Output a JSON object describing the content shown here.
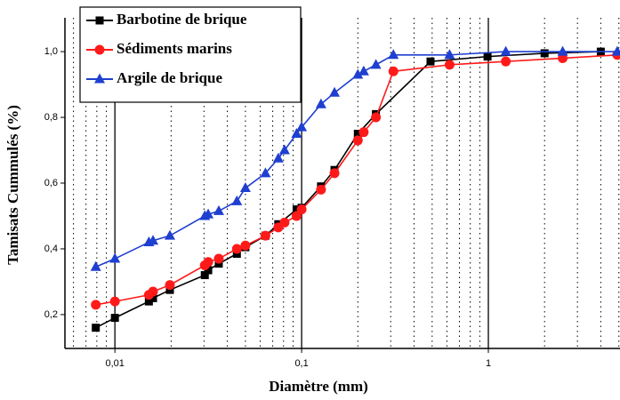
{
  "chart_data": {
    "type": "line",
    "x_label": "Diamètre (mm)",
    "y_label": "Tamisats Cummulés (%)",
    "xscale": "log",
    "xlim": [
      0.0054,
      5.07
    ],
    "ylim": [
      0.097,
      1.103
    ],
    "xticks": [
      {
        "value": 0.01,
        "label": "0,01"
      },
      {
        "value": 0.1,
        "label": "0,1"
      },
      1
    ],
    "yticks": [
      {
        "value": 0.2,
        "label": "0,2"
      },
      {
        "value": 0.4,
        "label": "0,4"
      },
      {
        "value": 0.6,
        "label": "0,6"
      },
      {
        "value": 0.8,
        "label": "0,8"
      },
      {
        "value": 1.0,
        "label": "1,0"
      }
    ],
    "grid": true,
    "legend": "upper left",
    "series": [
      {
        "name": "Barbotine de brique",
        "color": "#000000",
        "marker": "square",
        "x": [
          0.0079,
          0.01,
          0.0152,
          0.016,
          0.0197,
          0.0303,
          0.0316,
          0.036,
          0.045,
          0.05,
          0.064,
          0.075,
          0.094,
          0.1,
          0.127,
          0.15,
          0.2,
          0.25,
          0.49,
          0.99,
          2.0,
          4.0
        ],
        "values": [
          0.16,
          0.19,
          0.24,
          0.25,
          0.275,
          0.32,
          0.335,
          0.355,
          0.385,
          0.405,
          0.44,
          0.475,
          0.52,
          0.525,
          0.59,
          0.64,
          0.75,
          0.81,
          0.97,
          0.985,
          0.995,
          1.0
        ]
      },
      {
        "name": "Sédiments marins",
        "color": "#ff1a1a",
        "marker": "circle",
        "x": [
          0.0079,
          0.01,
          0.0152,
          0.016,
          0.0197,
          0.0303,
          0.0316,
          0.036,
          0.045,
          0.05,
          0.064,
          0.075,
          0.081,
          0.094,
          0.1,
          0.127,
          0.15,
          0.2,
          0.215,
          0.25,
          0.31,
          0.62,
          1.24,
          2.5,
          4.9
        ],
        "values": [
          0.23,
          0.24,
          0.26,
          0.27,
          0.29,
          0.35,
          0.36,
          0.37,
          0.4,
          0.41,
          0.44,
          0.465,
          0.48,
          0.5,
          0.52,
          0.58,
          0.63,
          0.73,
          0.755,
          0.8,
          0.94,
          0.96,
          0.97,
          0.98,
          0.99
        ]
      },
      {
        "name": "Argile de brique",
        "color": "#1f3fd0",
        "marker": "triangle",
        "x": [
          0.0079,
          0.01,
          0.0152,
          0.016,
          0.0197,
          0.0303,
          0.0316,
          0.036,
          0.045,
          0.05,
          0.064,
          0.075,
          0.081,
          0.094,
          0.1,
          0.127,
          0.15,
          0.2,
          0.215,
          0.25,
          0.31,
          0.62,
          1.24,
          2.5,
          4.9
        ],
        "values": [
          0.345,
          0.37,
          0.42,
          0.425,
          0.44,
          0.5,
          0.505,
          0.515,
          0.545,
          0.585,
          0.63,
          0.675,
          0.7,
          0.75,
          0.77,
          0.84,
          0.875,
          0.93,
          0.94,
          0.96,
          0.99,
          0.99,
          1.0,
          1.0,
          1.0
        ]
      }
    ]
  }
}
